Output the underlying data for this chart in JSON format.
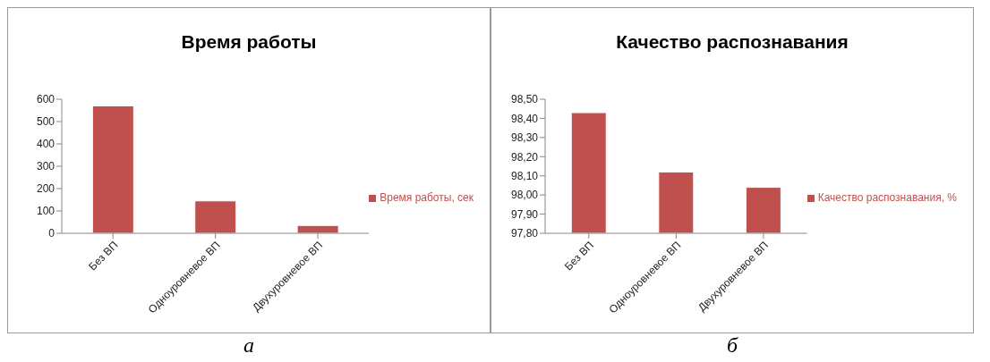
{
  "chart_data": [
    {
      "type": "bar",
      "title": "Время работы",
      "categories": [
        "Без ВП",
        "Одноуровневое ВП",
        "Двухуровневое ВП"
      ],
      "series": [
        {
          "name": "Время работы, сек",
          "color": "#c0504d",
          "values": [
            570,
            145,
            35
          ]
        }
      ],
      "ylim": [
        0,
        600
      ],
      "yticks": [
        0,
        100,
        200,
        300,
        400,
        500,
        600
      ],
      "grid": false,
      "legend": "right",
      "annotations": [
        "а"
      ]
    },
    {
      "type": "bar",
      "title": "Качество распознавания",
      "categories": [
        "Без ВП",
        "Одноуровневое ВП",
        "Двухуровневое ВП"
      ],
      "series": [
        {
          "name": "Качество распознавания, %",
          "color": "#c0504d",
          "values": [
            98.43,
            98.12,
            98.04
          ]
        }
      ],
      "ylim": [
        97.8,
        98.5
      ],
      "yticks": [
        {
          "value": 97.8,
          "label": "97,80"
        },
        {
          "value": 97.9,
          "label": "97,90"
        },
        {
          "value": 98.0,
          "label": "98,00"
        },
        {
          "value": 98.1,
          "label": "98,10"
        },
        {
          "value": 98.2,
          "label": "98,20"
        },
        {
          "value": 98.3,
          "label": "98,30"
        },
        {
          "value": 98.4,
          "label": "98,40"
        },
        {
          "value": 98.5,
          "label": "98,50"
        }
      ],
      "grid": false,
      "legend": "right",
      "annotations": [
        "б"
      ]
    }
  ]
}
